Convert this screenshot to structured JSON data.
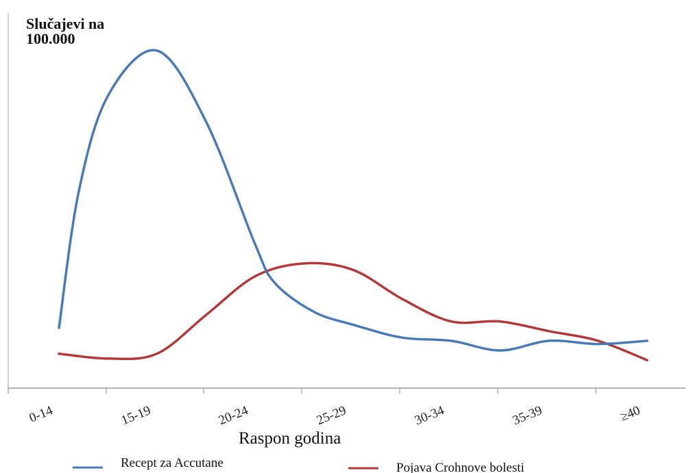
{
  "chart_data": {
    "type": "line",
    "title": "",
    "ylabel_lines": [
      "Slučajevi na",
      "100.000"
    ],
    "xlabel": "Raspon godina",
    "categories": [
      "0-14",
      "15-19",
      "20-24",
      "25-29",
      "30-34",
      "35-39",
      "≥40"
    ],
    "ylim": [
      0,
      100
    ],
    "grid": false,
    "y_tick_labels": false,
    "legend_position": "bottom",
    "series": [
      {
        "name": "Recept za Accutane",
        "color": "#4a7ab5",
        "x": [
          0.0,
          0.2,
          0.5,
          1.0,
          1.5,
          2.0,
          2.2,
          2.6,
          3.0,
          3.5,
          4.0,
          4.5,
          5.0,
          5.5,
          6.0
        ],
        "values": [
          14,
          56,
          86,
          100,
          78,
          40,
          28,
          19,
          15,
          11,
          10,
          7,
          10,
          9,
          10
        ]
      },
      {
        "name": "Pojava Crohnove bolesti",
        "color": "#b03a3a",
        "x": [
          0.0,
          0.5,
          1.0,
          1.5,
          2.0,
          2.5,
          3.0,
          3.5,
          4.0,
          4.5,
          5.0,
          5.5,
          6.0
        ],
        "values": [
          6,
          4.5,
          6,
          18,
          30,
          34,
          32,
          23,
          16,
          16,
          13,
          10,
          4
        ]
      }
    ]
  }
}
